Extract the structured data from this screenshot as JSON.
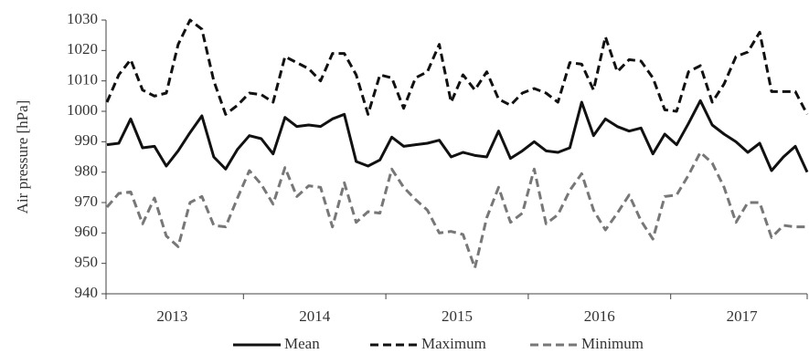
{
  "chart_data": {
    "type": "line",
    "y_label": "Air pressure [hPa]",
    "categories": [
      null,
      null,
      null,
      null,
      null,
      null,
      "2013",
      null,
      null,
      null,
      null,
      null,
      null,
      null,
      null,
      null,
      null,
      null,
      "2014",
      null,
      null,
      null,
      null,
      null,
      null,
      null,
      null,
      null,
      null,
      null,
      "2015",
      null,
      null,
      null,
      null,
      null,
      null,
      null,
      null,
      null,
      null,
      null,
      "2016",
      null,
      null,
      null,
      null,
      null,
      null,
      null,
      null,
      null,
      null,
      null,
      "2017",
      null,
      null,
      null,
      null,
      null
    ],
    "series": [
      {
        "name": "Mean",
        "color": "#111111",
        "dash": "solid",
        "values": [
          989,
          989.5,
          997.5,
          988,
          988.5,
          982,
          987,
          993,
          998.5,
          985,
          981,
          987.5,
          992,
          991,
          986,
          998,
          995,
          995.5,
          995,
          997.5,
          999,
          983.5,
          982,
          984,
          991.5,
          988.5,
          989,
          989.5,
          990.5,
          985,
          986.5,
          985.5,
          985,
          993.5,
          984.5,
          987,
          990,
          987,
          986.5,
          988,
          1003,
          992,
          997.5,
          995,
          993.5,
          994.5,
          986,
          992.5,
          989,
          996,
          1003.5,
          995.5,
          992.5,
          990,
          986.5,
          989.5,
          980.5,
          985,
          988.5,
          980
        ]
      },
      {
        "name": "Maximum",
        "color": "#111111",
        "dash": "dashed",
        "values": [
          1003,
          1012,
          1017,
          1007,
          1005,
          1006,
          1022,
          1030,
          1027,
          1010,
          999,
          1002,
          1006,
          1005.5,
          1003,
          1018,
          1016,
          1014,
          1010,
          1019,
          1019,
          1012,
          999,
          1012,
          1011,
          1001,
          1011,
          1013,
          1022,
          1003,
          1012,
          1007,
          1013,
          1004,
          1002,
          1006,
          1007.5,
          1006,
          1003,
          1016,
          1015.5,
          1007,
          1024.5,
          1013,
          1017,
          1016.5,
          1011,
          1000.5,
          1000,
          1013,
          1015,
          1003,
          1009,
          1018,
          1019.5,
          1026,
          1006.5,
          1006.5,
          1006.5,
          999
        ]
      },
      {
        "name": "Minimum",
        "color": "#777777",
        "dash": "dashed",
        "values": [
          968.5,
          973,
          973.5,
          963,
          971.5,
          959,
          955.5,
          970,
          972,
          962.5,
          962,
          971.5,
          980.5,
          976,
          969.5,
          981.5,
          972,
          975.5,
          975,
          962,
          976.5,
          963.5,
          967,
          966.5,
          981,
          975,
          971,
          967.5,
          960,
          960.5,
          959.5,
          948.5,
          965,
          975,
          963.5,
          966.5,
          981,
          963,
          966,
          974,
          979.5,
          967.5,
          961,
          966.5,
          972.5,
          964,
          958,
          972,
          972.5,
          979,
          986.5,
          983,
          975,
          963.5,
          970,
          970,
          958.5,
          962.5,
          962,
          962
        ]
      }
    ],
    "ylim": [
      940,
      1030
    ],
    "yticks": [
      940,
      950,
      960,
      970,
      980,
      990,
      1000,
      1010,
      1020,
      1030
    ],
    "grid": false,
    "legend": "bottom"
  }
}
